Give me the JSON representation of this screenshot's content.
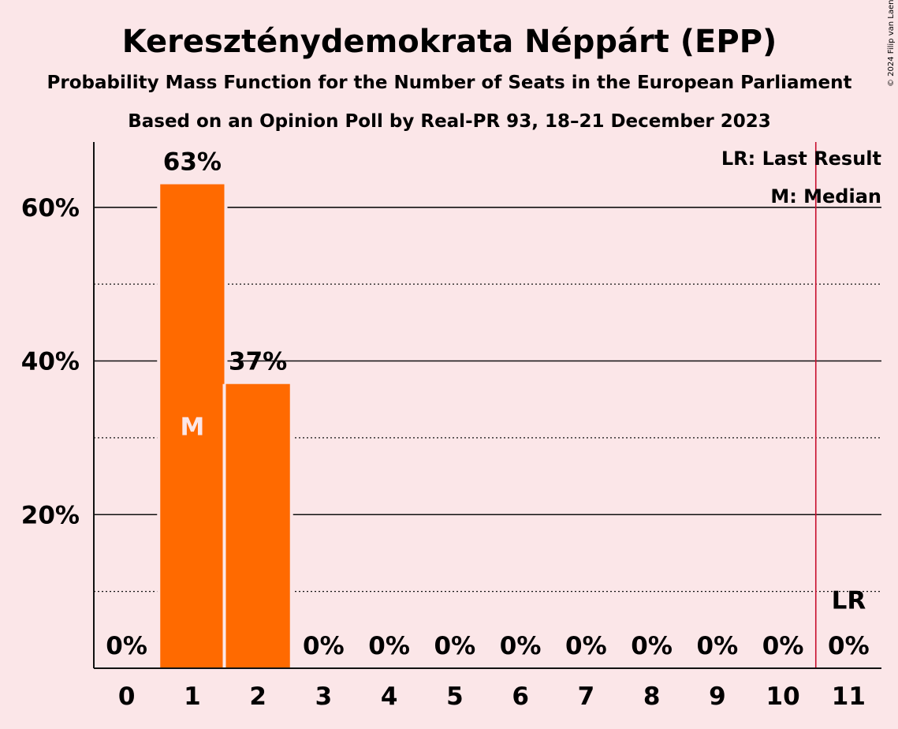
{
  "chart_data": {
    "type": "bar",
    "title": "Kereszténydemokrata Néppárt (EPP)",
    "subtitle": "Probability Mass Function for the Number of Seats in the European Parliament",
    "subtitle2": "Based on an Opinion Poll by Real-PR 93, 18–21 December 2023",
    "copyright": "© 2024 Filip van Laenen",
    "categories": [
      "0",
      "1",
      "2",
      "3",
      "4",
      "5",
      "6",
      "7",
      "8",
      "9",
      "10",
      "11"
    ],
    "values": [
      0,
      63,
      37,
      0,
      0,
      0,
      0,
      0,
      0,
      0,
      0,
      0
    ],
    "value_labels": [
      "0%",
      "63%",
      "37%",
      "0%",
      "0%",
      "0%",
      "0%",
      "0%",
      "0%",
      "0%",
      "0%",
      "0%"
    ],
    "ylim": [
      0,
      68.5
    ],
    "yticks": [
      20,
      40,
      60
    ],
    "ytick_labels": [
      "20%",
      "40%",
      "60%"
    ],
    "minor_gridlines": [
      10,
      30,
      50
    ],
    "median_seat": 1,
    "median_marker": "M",
    "last_result_seat": 11,
    "last_result_marker": "LR",
    "legend": [
      "LR: Last Result",
      "M: Median"
    ],
    "legend_position": "top-right",
    "colors": {
      "bar": "#ff6a00",
      "background": "#fbe6e8",
      "last_result_line": "#c8102e",
      "text": "#111111",
      "median_text": "#fbe6e8"
    }
  }
}
